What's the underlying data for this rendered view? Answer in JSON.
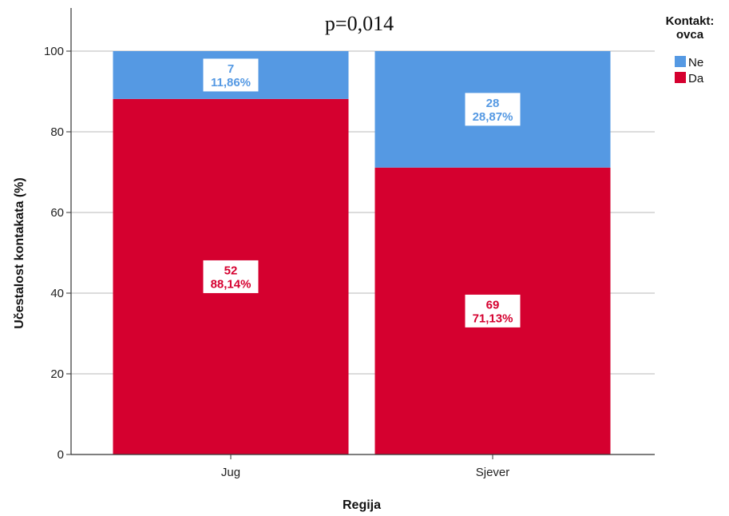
{
  "chart_data": {
    "type": "bar",
    "stacked": true,
    "title": "p=0,014",
    "xlabel": "Regija",
    "ylabel": "Učestalost kontakata (%)",
    "categories": [
      "Jug",
      "Sjever"
    ],
    "ylim": [
      0,
      100
    ],
    "yticks": [
      0,
      20,
      40,
      60,
      80,
      100
    ],
    "ytick_labels": [
      "0",
      "20",
      "40",
      "60",
      "80",
      "100"
    ],
    "grid": true,
    "legend": {
      "title_lines": [
        "Kontakt:",
        "ovca"
      ],
      "placement": "top-right"
    },
    "series": [
      {
        "name": "Da",
        "color": "#d5002f",
        "values": [
          88.14,
          71.13
        ],
        "counts": [
          "52",
          "69"
        ],
        "percent_labels": [
          "88,14%",
          "71,13%"
        ]
      },
      {
        "name": "Ne",
        "color": "#5599e3",
        "values": [
          11.86,
          28.87
        ],
        "counts": [
          "7",
          "28"
        ],
        "percent_labels": [
          "11,86%",
          "28,87%"
        ]
      }
    ],
    "legend_order": [
      "Ne",
      "Da"
    ]
  }
}
